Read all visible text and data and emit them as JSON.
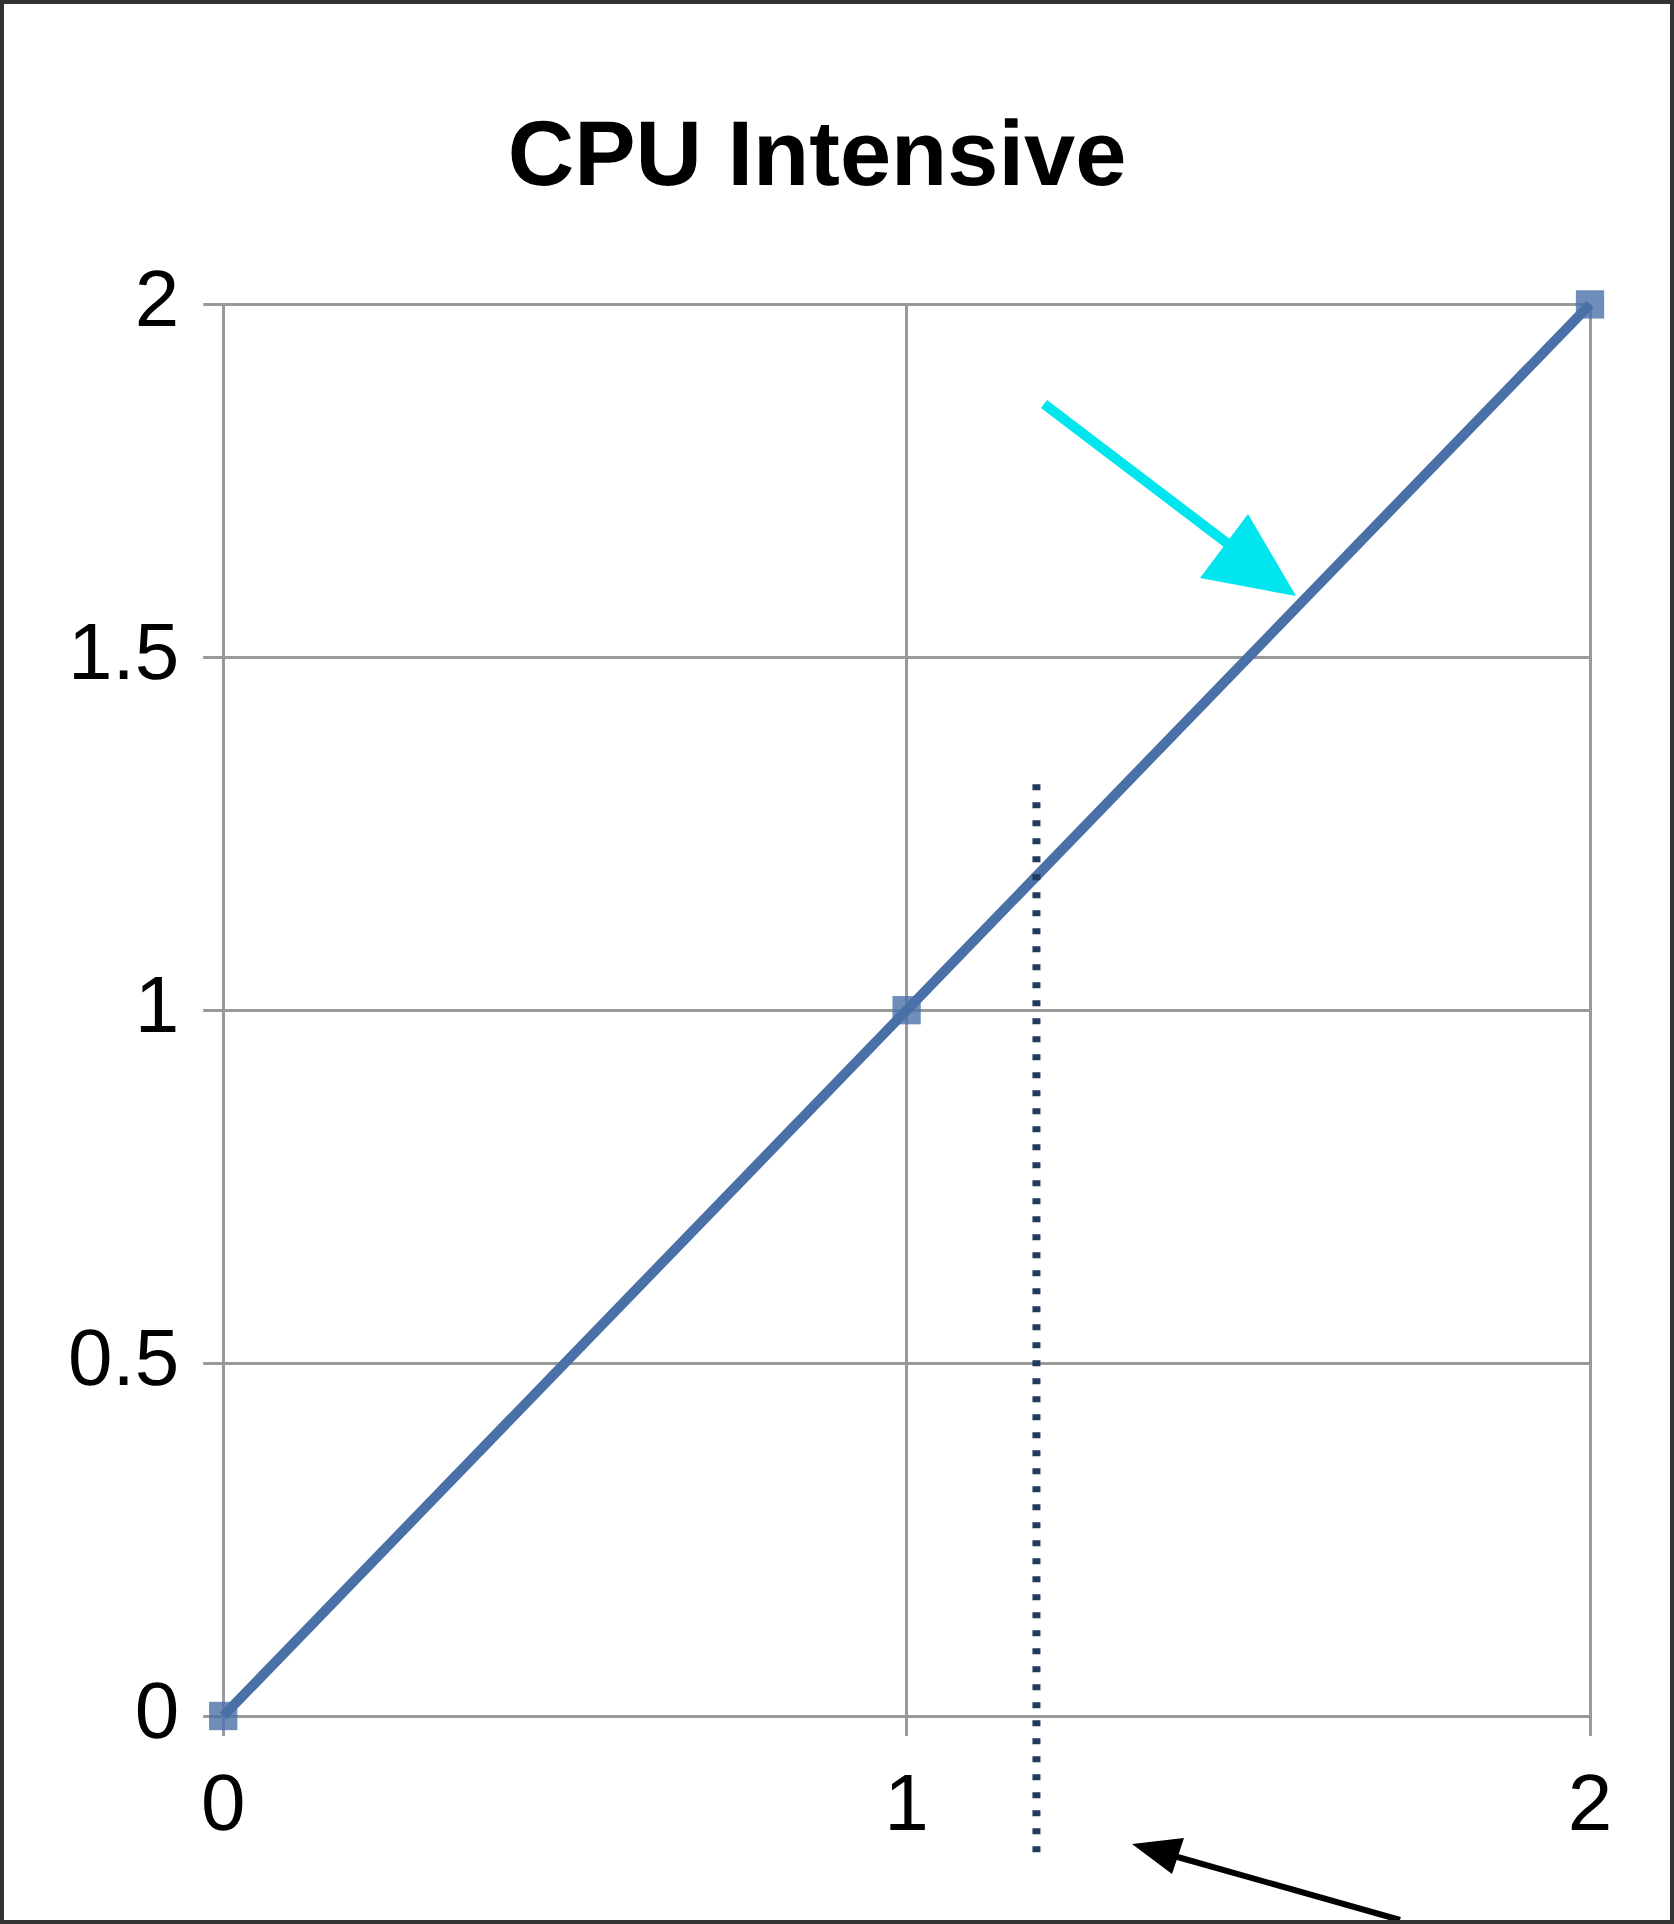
{
  "chart_data": {
    "type": "line",
    "title": "CPU Intensive",
    "x": [
      0,
      1,
      2
    ],
    "series": [
      {
        "color": "#4a70a8",
        "values": [
          0,
          1,
          2
        ]
      }
    ],
    "xlim": [
      0,
      2
    ],
    "xticks": [
      0,
      1,
      2
    ],
    "ylim": [
      0,
      2
    ],
    "yticks": [
      0,
      0.5,
      1,
      1.5,
      2
    ],
    "grid": true,
    "legend": false,
    "marker": "square",
    "line_style": "solid",
    "ref_lines": [
      {
        "axis": "x",
        "value": 1.19,
        "color": "#1f3b5e",
        "line_style": "dotted"
      }
    ]
  }
}
